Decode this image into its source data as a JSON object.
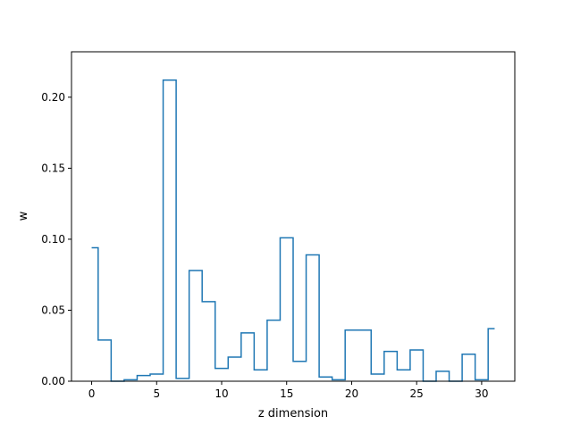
{
  "chart_data": {
    "type": "line",
    "drawstyle": "steps-mid",
    "title": "",
    "xlabel": "z dimension",
    "ylabel": "w",
    "xlim": [
      -1.55,
      32.55
    ],
    "ylim": [
      0.0,
      0.232
    ],
    "xticks": [
      0,
      5,
      10,
      15,
      20,
      25,
      30
    ],
    "xtick_labels": [
      "0",
      "5",
      "10",
      "15",
      "20",
      "25",
      "30"
    ],
    "yticks": [
      0.0,
      0.05,
      0.1,
      0.15,
      0.2
    ],
    "ytick_labels": [
      "0.00",
      "0.05",
      "0.10",
      "0.15",
      "0.20"
    ],
    "grid": false,
    "series": [
      {
        "color": "#1f77b4",
        "x": [
          0,
          1,
          2,
          3,
          4,
          5,
          6,
          7,
          8,
          9,
          10,
          11,
          12,
          13,
          14,
          15,
          16,
          17,
          18,
          19,
          20,
          21,
          22,
          23,
          24,
          25,
          26,
          27,
          28,
          29,
          30,
          31
        ],
        "values": [
          0.094,
          0.029,
          0.0,
          0.001,
          0.004,
          0.005,
          0.212,
          0.002,
          0.078,
          0.056,
          0.009,
          0.017,
          0.034,
          0.008,
          0.043,
          0.101,
          0.014,
          0.089,
          0.003,
          0.001,
          0.036,
          0.036,
          0.005,
          0.021,
          0.008,
          0.022,
          0.0,
          0.007,
          0.0,
          0.019,
          0.001,
          0.037
        ]
      }
    ]
  }
}
